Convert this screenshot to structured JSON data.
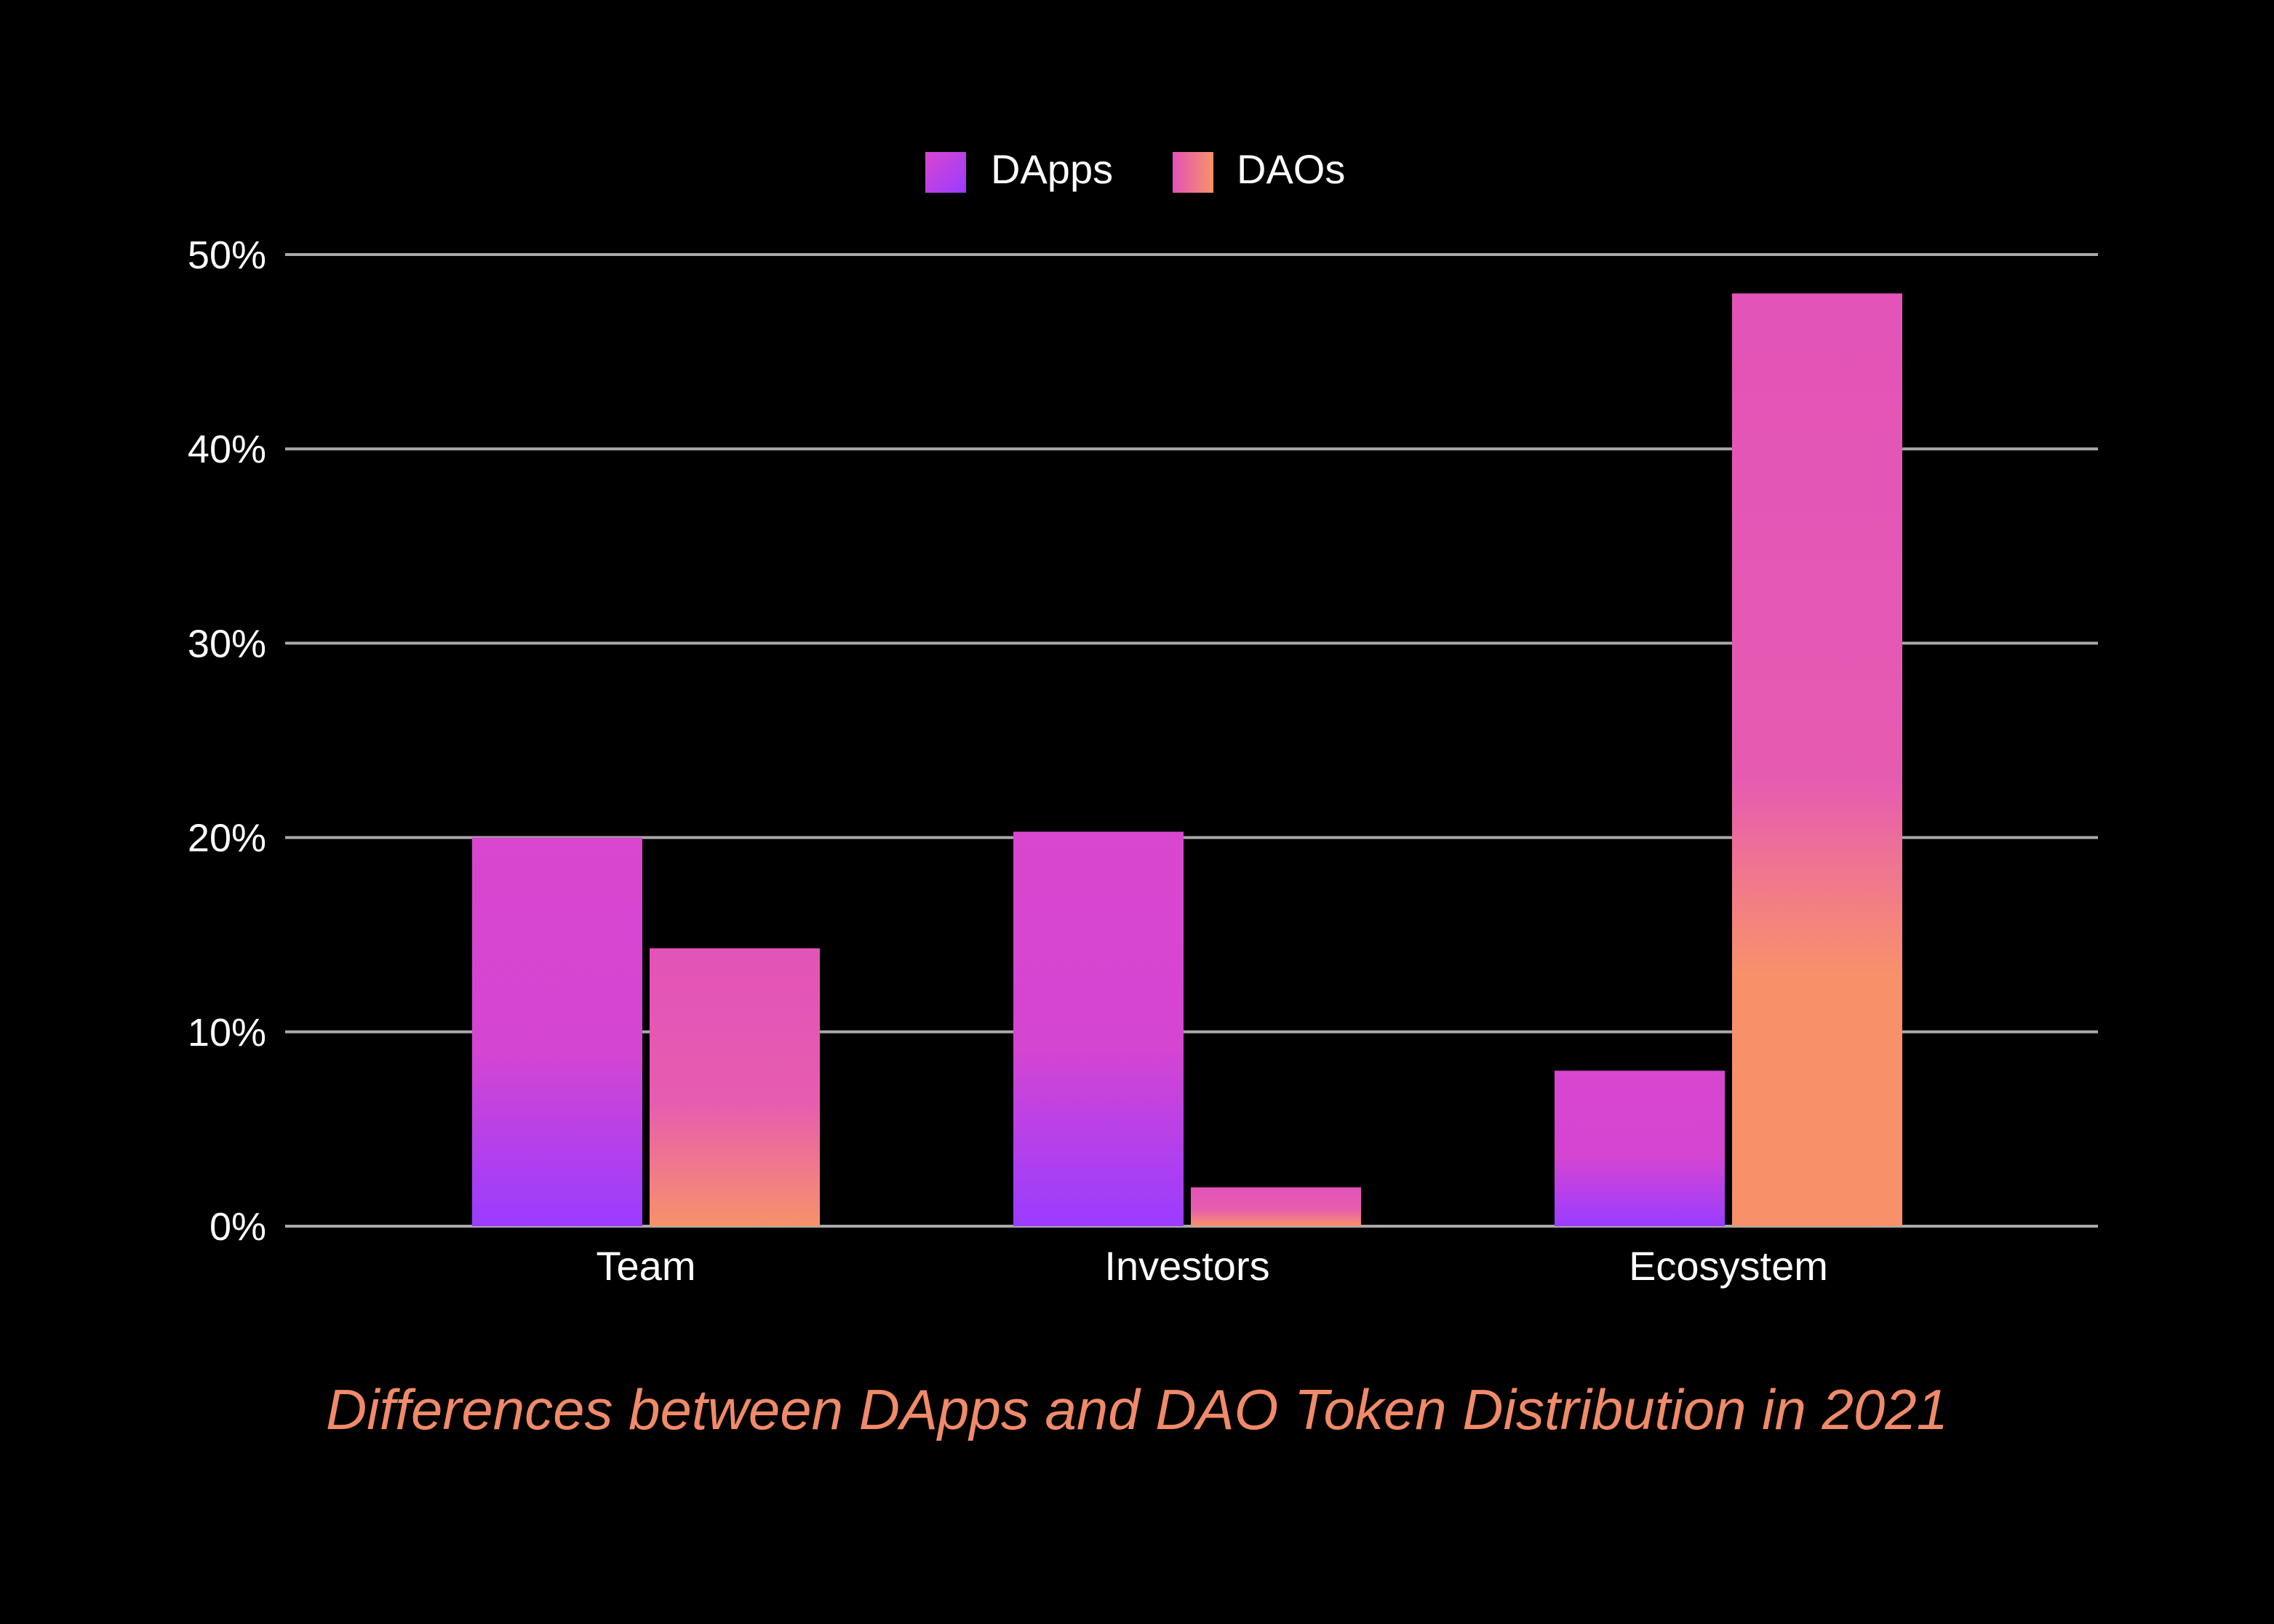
{
  "chart_data": {
    "type": "bar",
    "title": "",
    "caption": "Differences between DApps and DAO Token Distribution in 2021",
    "categories": [
      "Team",
      "Investors",
      "Ecosystem"
    ],
    "series": [
      {
        "name": "DApps",
        "values": [
          20.0,
          20.3,
          8.0
        ]
      },
      {
        "name": "DAOs",
        "values": [
          14.3,
          2.0,
          48.0
        ]
      }
    ],
    "y_ticks": [
      0,
      10,
      20,
      30,
      40,
      50
    ],
    "y_tick_labels": [
      "0%",
      "10%",
      "20%",
      "30%",
      "40%",
      "50%"
    ],
    "ylim": [
      0,
      50
    ],
    "xlabel": "",
    "ylabel": "",
    "grid": "horizontal",
    "legend_position": "top-center"
  },
  "colors": {
    "background": "#000000",
    "grid": "#a9a9a9",
    "text": "#ffffff",
    "caption": "#f08a68",
    "dapps_top": "#d946cf",
    "dapps_bottom": "#9a3cff",
    "daos_top": "#e353b8",
    "daos_bottom": "#f7926a"
  }
}
